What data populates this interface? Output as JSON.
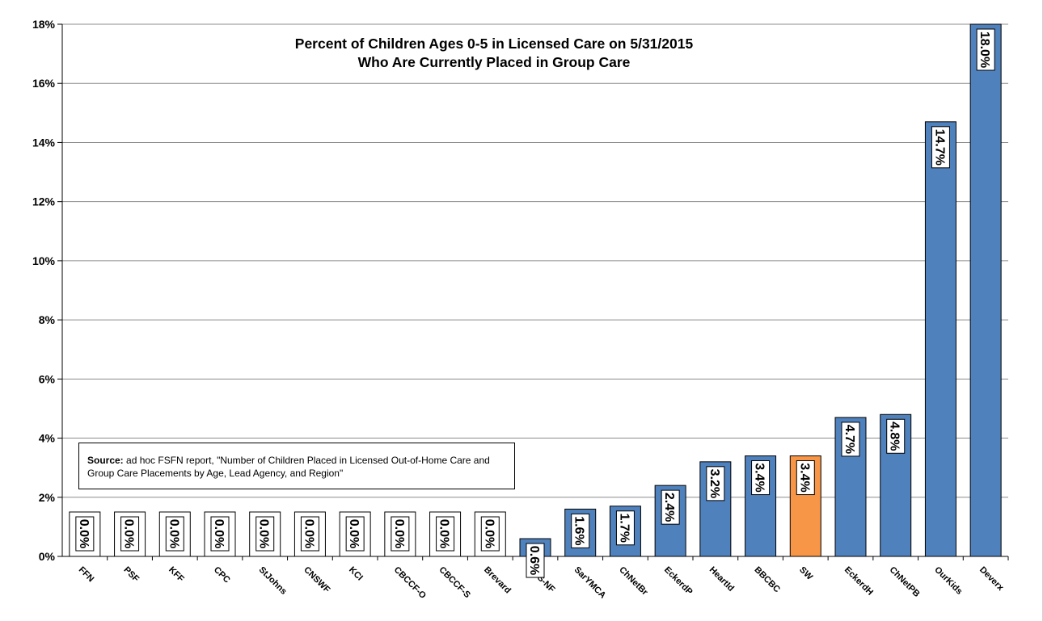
{
  "chart_data": {
    "type": "bar",
    "title_line1": "Percent of Children Ages 0-5 in Licensed Care on 5/31/2015",
    "title_line2": "Who Are Currently Placed in Group Care",
    "xlabel": "",
    "ylabel": "",
    "ylim": [
      0,
      18
    ],
    "yticks": [
      "0%",
      "2%",
      "4%",
      "6%",
      "8%",
      "10%",
      "12%",
      "14%",
      "16%",
      "18%"
    ],
    "grid": true,
    "categories": [
      "FFN",
      "PSF",
      "KFF",
      "CPC",
      "StJohns",
      "CNSWF",
      "KCI",
      "CBCCF-O",
      "CBCCF-S",
      "Brevard",
      "FSS-NF",
      "SarYMCA",
      "ChNetBr",
      "EckerdP",
      "HeartId",
      "BBCBC",
      "SW",
      "EckerdH",
      "ChNetPB",
      "OurKids",
      "Deverx"
    ],
    "values": [
      0.0,
      0.0,
      0.0,
      0.0,
      0.0,
      0.0,
      0.0,
      0.0,
      0.0,
      0.0,
      0.6,
      1.6,
      1.7,
      2.4,
      3.2,
      3.4,
      3.4,
      4.7,
      4.8,
      14.7,
      18.0
    ],
    "data_labels": [
      "0.0%",
      "0.0%",
      "0.0%",
      "0.0%",
      "0.0%",
      "0.0%",
      "0.0%",
      "0.0%",
      "0.0%",
      "0.0%",
      "0.6%",
      "1.6%",
      "1.7%",
      "2.4%",
      "3.2%",
      "3.4%",
      "3.4%",
      "4.7%",
      "4.8%",
      "14.7%",
      "18.0%"
    ],
    "highlight_index": 16,
    "colors": {
      "bar": "#4f81bd",
      "highlight": "#f79646",
      "outline": "#000000",
      "grid": "#8c8c8c"
    }
  },
  "source_note": {
    "label": "Source:",
    "text": " ad hoc FSFN report, \"Number of Children Placed in Licensed Out-of-Home Care and Group Care Placements by Age, Lead Agency, and Region\""
  }
}
